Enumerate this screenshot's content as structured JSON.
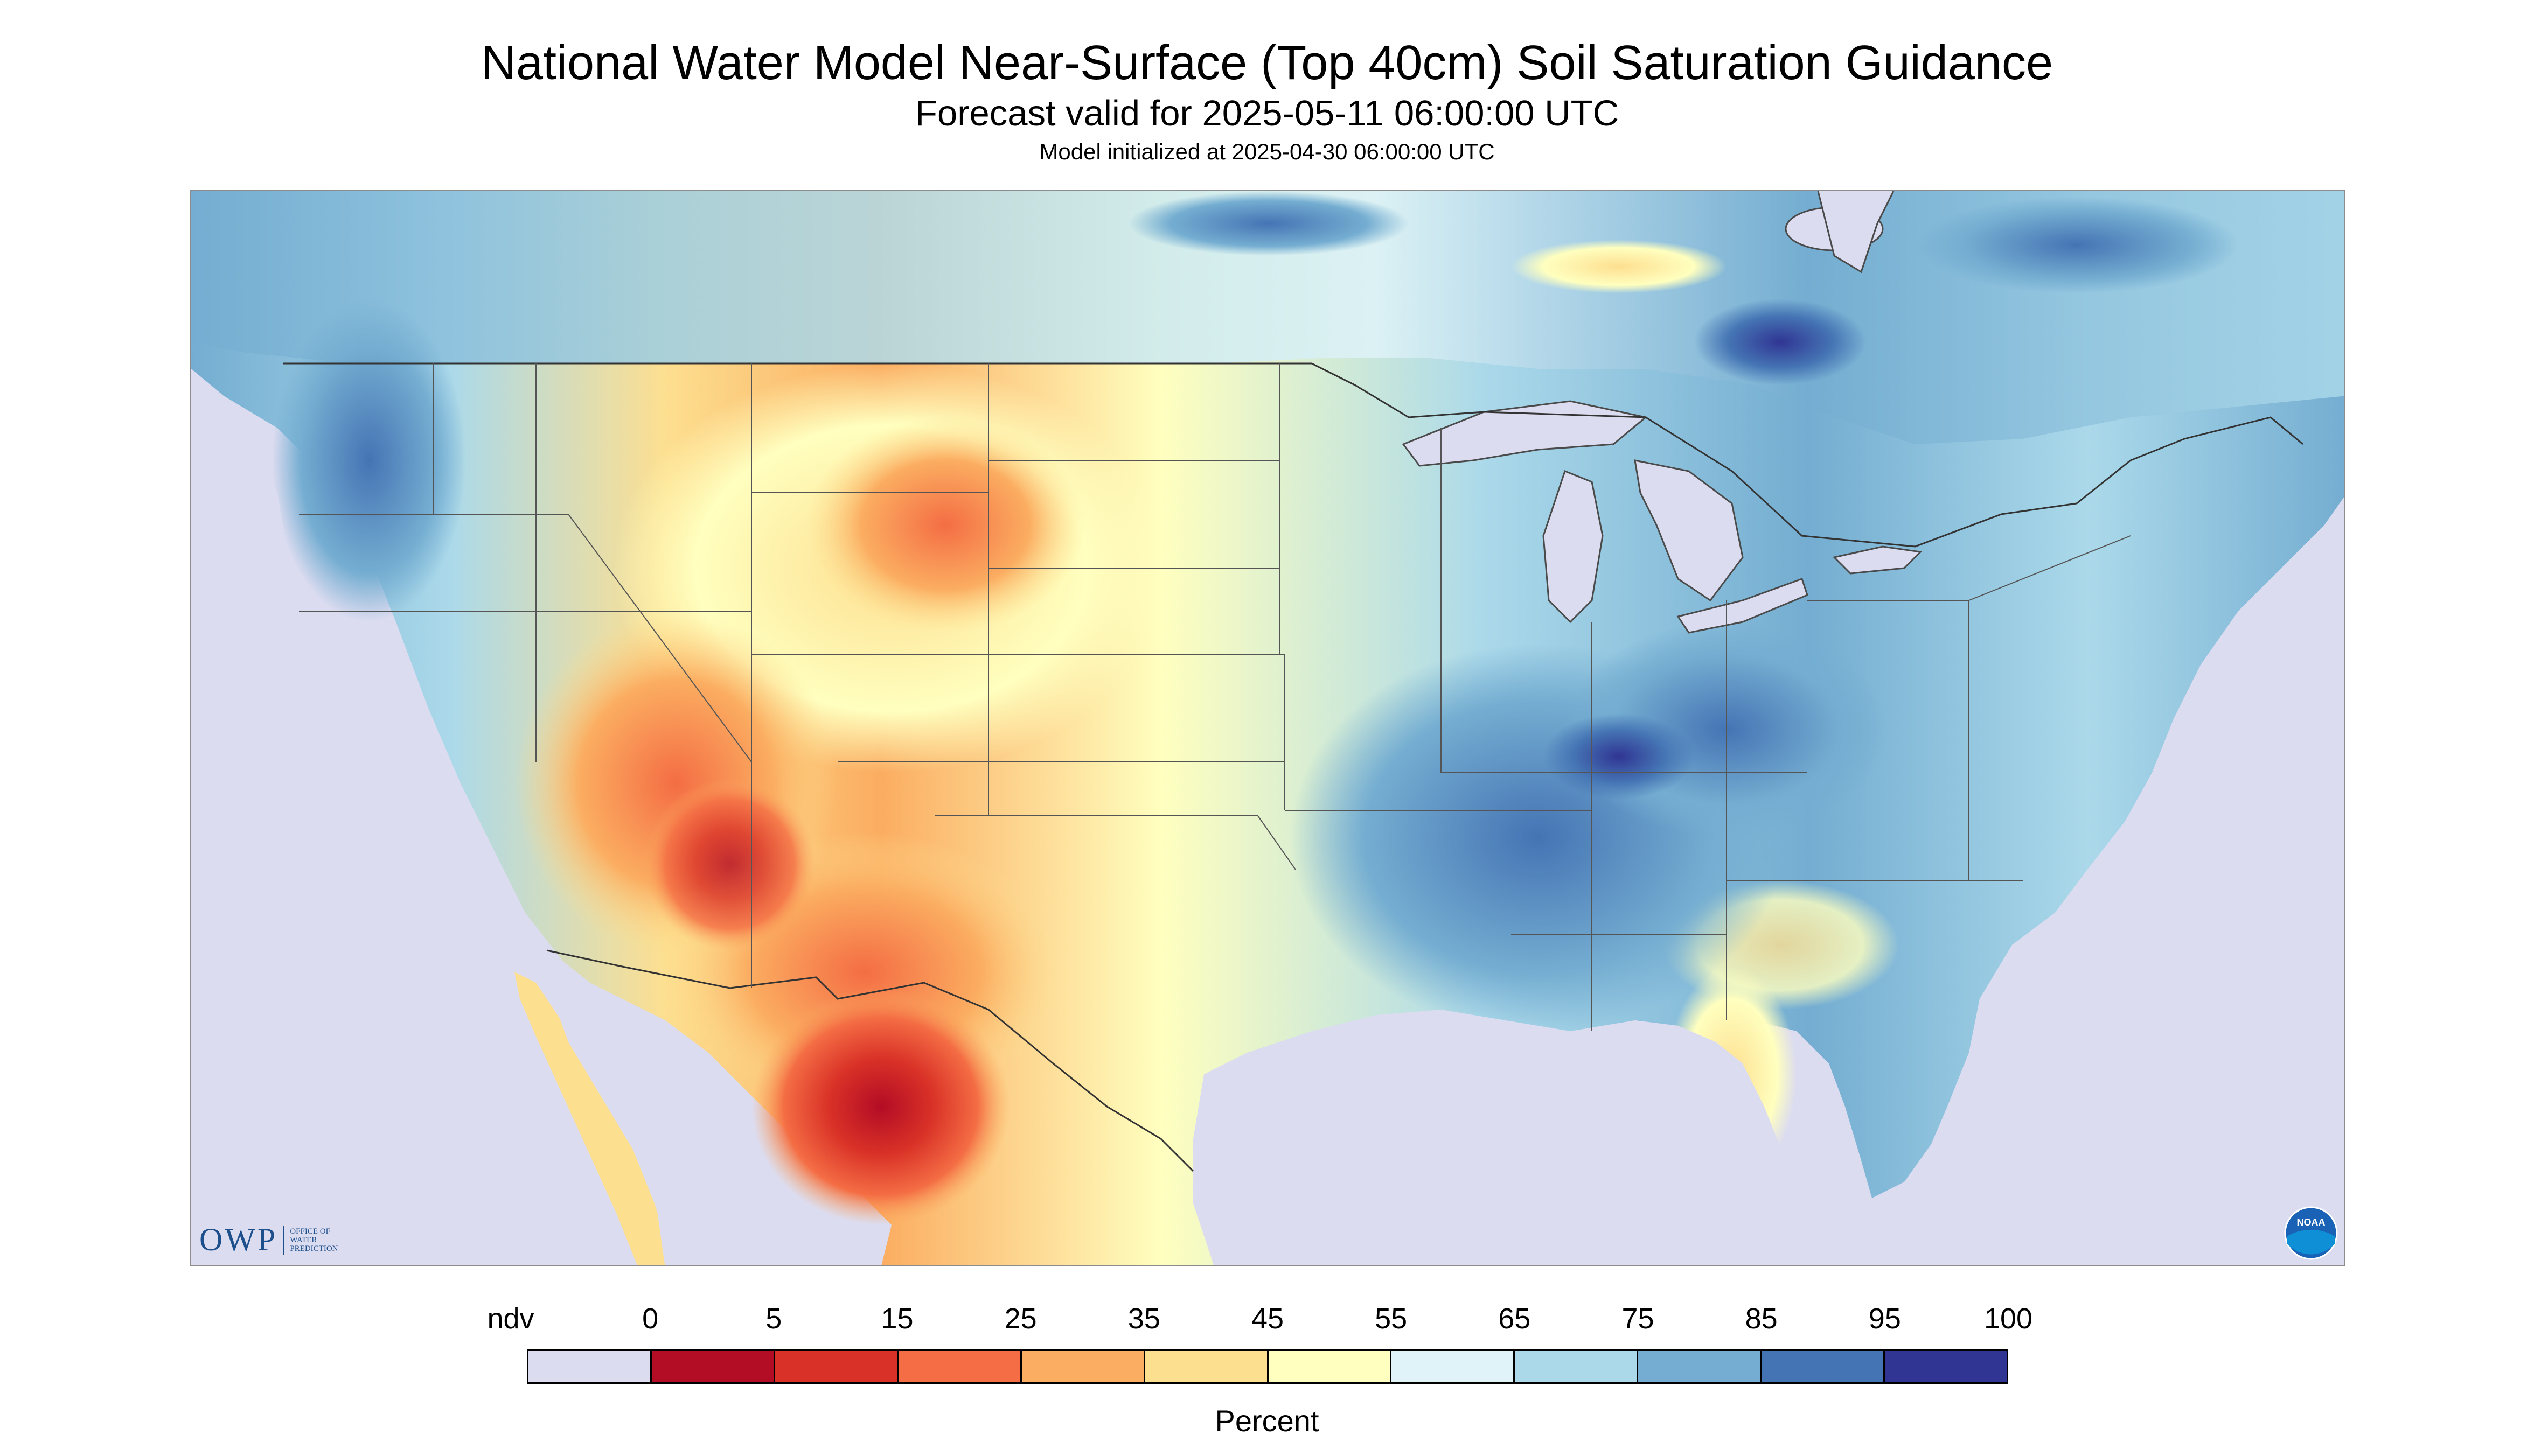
{
  "title": "National Water Model Near-Surface (Top 40cm) Soil Saturation Guidance",
  "subtitle": "Forecast valid for 2025-05-11 06:00:00 UTC",
  "init_line": "Model initialized at 2025-04-30 06:00:00 UTC",
  "logo": {
    "main": "OWP",
    "sub_lines": [
      "OFFICE OF",
      "WATER",
      "PREDICTION"
    ]
  },
  "noaa_logo_text": "NOAA",
  "legend": {
    "labels": [
      "ndv",
      "0",
      "5",
      "15",
      "25",
      "35",
      "45",
      "55",
      "65",
      "75",
      "85",
      "95",
      "100"
    ],
    "colors": [
      "#dcdcf0",
      "#b30c25",
      "#d93127",
      "#f46d44",
      "#fbad61",
      "#fddf90",
      "#ffffbf",
      "#dff3f8",
      "#abd9ea",
      "#74add1",
      "#4574b4",
      "#303593"
    ],
    "unit": "Percent"
  },
  "map": {
    "region": "CONUS",
    "ndv_color": "#dcdcf0",
    "water_color": "#dcdcf0",
    "boundary_color": "#4a4a4a"
  }
}
